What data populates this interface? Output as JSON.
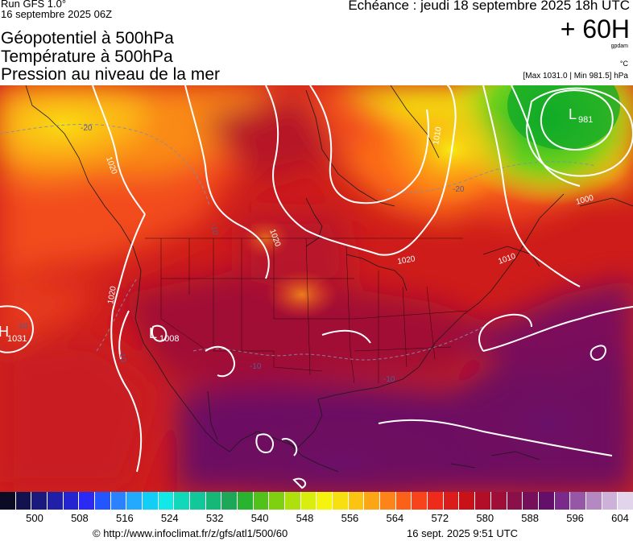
{
  "header": {
    "run": "Run GFS 1.0°",
    "run_date": "16 septembre 2025 06Z",
    "titles": [
      "Géopotentiel à 500hPa",
      "Température à 500hPa",
      "Pression au niveau de la mer"
    ],
    "echeance": "Echéance : jeudi 18 septembre 2025 18h UTC",
    "lead": "+ 60H",
    "unit_geo": "gpdam",
    "unit_temp": "°C",
    "max_min": "[Max 1031.0 | Min 981.5] hPa"
  },
  "map": {
    "pressure_labels": [
      "981",
      "1008",
      "1031"
    ],
    "isobar_labels": [
      "1020",
      "1020",
      "1020",
      "1020",
      "1010",
      "1010",
      "1000"
    ],
    "temp_labels": [
      "-20",
      "-20",
      "-10",
      "-10",
      "-10",
      "-10",
      "-10"
    ],
    "low_symbol": "L",
    "high_symbol": "H"
  },
  "colorbar": {
    "colors": [
      "#0b0b25",
      "#12124e",
      "#1a1a7e",
      "#1f1fa8",
      "#2424d0",
      "#2a2af4",
      "#2456ff",
      "#2a82ff",
      "#22aaff",
      "#12cdf6",
      "#12e8e8",
      "#10d8b8",
      "#12c89a",
      "#16b878",
      "#1ca858",
      "#28b42e",
      "#52c21a",
      "#80d012",
      "#aee00e",
      "#d8ee0e",
      "#f4f40e",
      "#f8e010",
      "#fcc412",
      "#fca616",
      "#fc8418",
      "#fa621a",
      "#f8441a",
      "#ee2a1a",
      "#dc1c1a",
      "#c81218",
      "#b20e28",
      "#9e0e38",
      "#8a104a",
      "#76105a",
      "#64106a",
      "#7a2a8a",
      "#9658a6",
      "#b488c0",
      "#ccb2d8",
      "#e2d4ea"
    ],
    "ticks": [
      "500",
      "508",
      "516",
      "524",
      "532",
      "540",
      "548",
      "556",
      "564",
      "572",
      "580",
      "588",
      "596",
      "604"
    ]
  },
  "footer": {
    "source": "© http://www.infoclimat.fr/z/gfs/atl1/500/60",
    "generated": "16 sept. 2025  9:51 UTC"
  }
}
